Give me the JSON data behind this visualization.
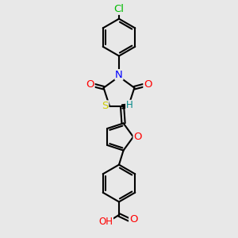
{
  "bg_color": "#e8e8e8",
  "bond_color": "#000000",
  "bond_width": 1.5,
  "atom_colors": {
    "Cl": "#00bb00",
    "N": "#0000ff",
    "O": "#ff0000",
    "S": "#cccc00",
    "H": "#008888",
    "C": "#000000"
  },
  "font_size": 8.5,
  "fig_size": [
    3.0,
    3.0
  ],
  "dpi": 100
}
